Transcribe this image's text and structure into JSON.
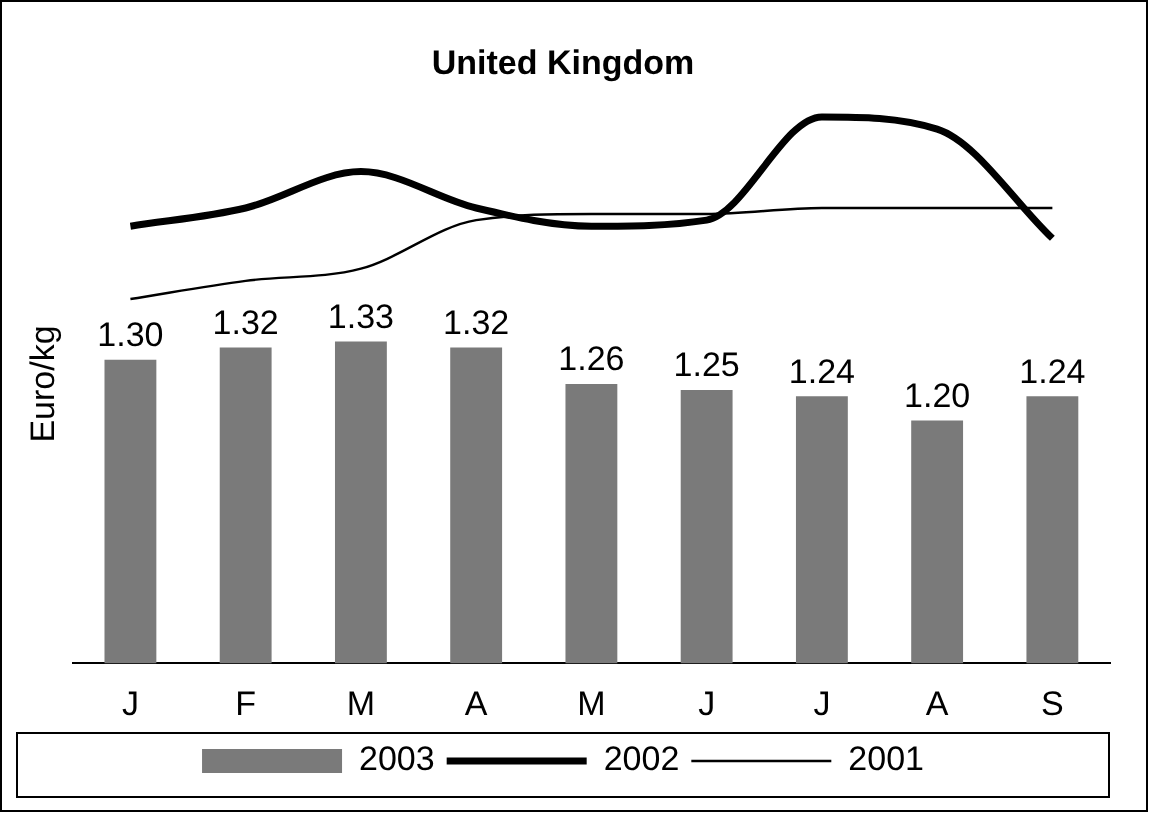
{
  "chart_data": {
    "type": "bar",
    "title": "United Kingdom",
    "ylabel": "Euro/kg",
    "categories": [
      "J",
      "F",
      "M",
      "A",
      "M",
      "J",
      "J",
      "A",
      "S"
    ],
    "series": [
      {
        "name": "2003",
        "color": "#7a7a7a",
        "values": [
          1.3,
          1.32,
          1.33,
          1.32,
          1.26,
          1.25,
          1.24,
          1.2,
          1.24
        ],
        "value_labels": [
          "1.30",
          "1.32",
          "1.33",
          "1.32",
          "1.26",
          "1.25",
          "1.24",
          "1.20",
          "1.24"
        ]
      },
      {
        "name": "2002",
        "type": "line",
        "color": "#000000",
        "values": [
          1.52,
          1.55,
          1.61,
          1.55,
          1.52,
          1.53,
          1.7,
          1.68,
          1.5
        ]
      },
      {
        "name": "2001",
        "type": "line",
        "color": "#000000",
        "values": [
          1.4,
          1.43,
          1.45,
          1.53,
          1.54,
          1.54,
          1.55,
          1.55,
          1.55
        ]
      }
    ],
    "tick_labels": "x",
    "grid": false,
    "legend": "bottom",
    "marker": "none"
  }
}
